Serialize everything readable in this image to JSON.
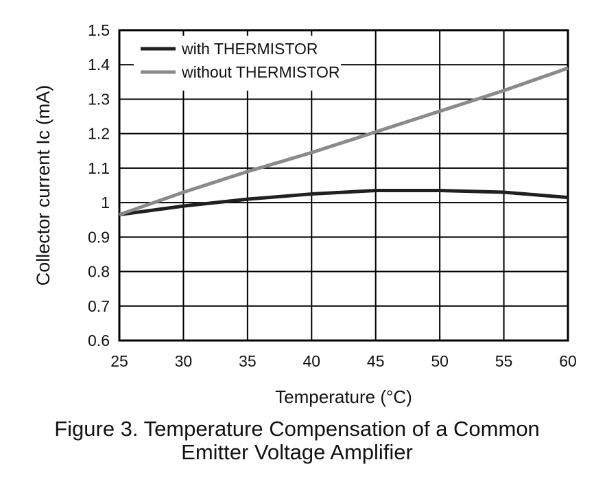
{
  "chart_data": {
    "type": "line",
    "title": "",
    "xlabel": "Temperature (°C)",
    "ylabel": "Collector current Ic (mA)",
    "xlim": [
      25,
      60
    ],
    "ylim": [
      0.6,
      1.5
    ],
    "x_ticks": [
      25,
      30,
      35,
      40,
      45,
      50,
      55,
      60
    ],
    "x_tick_labels": [
      "25",
      "30",
      "35",
      "40",
      "45",
      "50",
      "55",
      "60"
    ],
    "y_ticks": [
      0.6,
      0.7,
      0.8,
      0.9,
      1.0,
      1.1,
      1.2,
      1.3,
      1.4,
      1.5
    ],
    "y_tick_labels": [
      "0.6",
      "0.7",
      "0.8",
      "0.9",
      "1",
      "1.1",
      "1.2",
      "1.3",
      "1.4",
      "1.5"
    ],
    "grid": true,
    "legend_position": "top-left",
    "x": [
      25,
      30,
      35,
      40,
      45,
      50,
      55,
      60
    ],
    "series": [
      {
        "name": "with THERMISTOR",
        "color": "#231f20",
        "values": [
          0.965,
          0.99,
          1.01,
          1.025,
          1.035,
          1.035,
          1.03,
          1.015
        ]
      },
      {
        "name": "without THERMISTOR",
        "color": "#8a8a8a",
        "values": [
          0.965,
          1.03,
          1.09,
          1.145,
          1.205,
          1.265,
          1.325,
          1.39
        ]
      }
    ]
  },
  "caption": {
    "line1": "Figure 3. Temperature Compensation of a Common",
    "line2": "Emitter Voltage Amplifier"
  }
}
